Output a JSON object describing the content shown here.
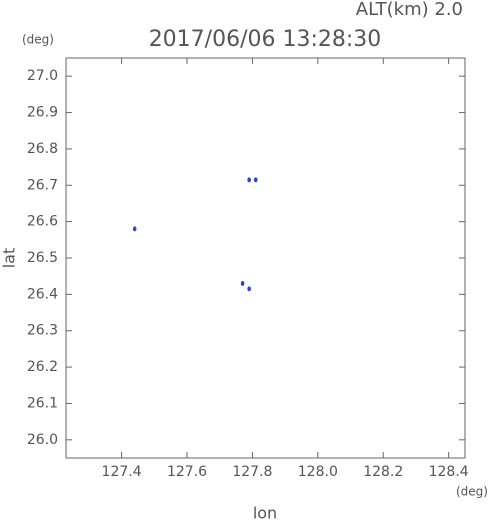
{
  "chart_data": {
    "type": "scatter",
    "title": "2017/06/06 13:28:30",
    "annotation": "ALT(km) 2.0",
    "y_unit": "(deg)",
    "x_unit": "(deg)",
    "xlabel": "lon",
    "ylabel": "lat",
    "x": [
      127.44,
      127.79,
      127.81,
      127.77,
      127.79
    ],
    "series": [
      {
        "color": "#3344cc",
        "values": [
          26.58,
          26.715,
          26.715,
          26.43,
          26.415
        ]
      }
    ],
    "xlim": [
      127.23,
      128.45
    ],
    "ylim": [
      25.95,
      27.05
    ],
    "xticks": [
      127.4,
      127.6,
      127.8,
      {
        "value": 128,
        "label": "128.0"
      },
      128.2,
      128.4
    ],
    "yticks": [
      {
        "value": 26,
        "label": "26.0"
      },
      26.1,
      26.2,
      26.3,
      26.4,
      26.5,
      26.6,
      26.7,
      26.8,
      26.9,
      {
        "value": 27,
        "label": "27.0"
      }
    ],
    "grid": false
  }
}
